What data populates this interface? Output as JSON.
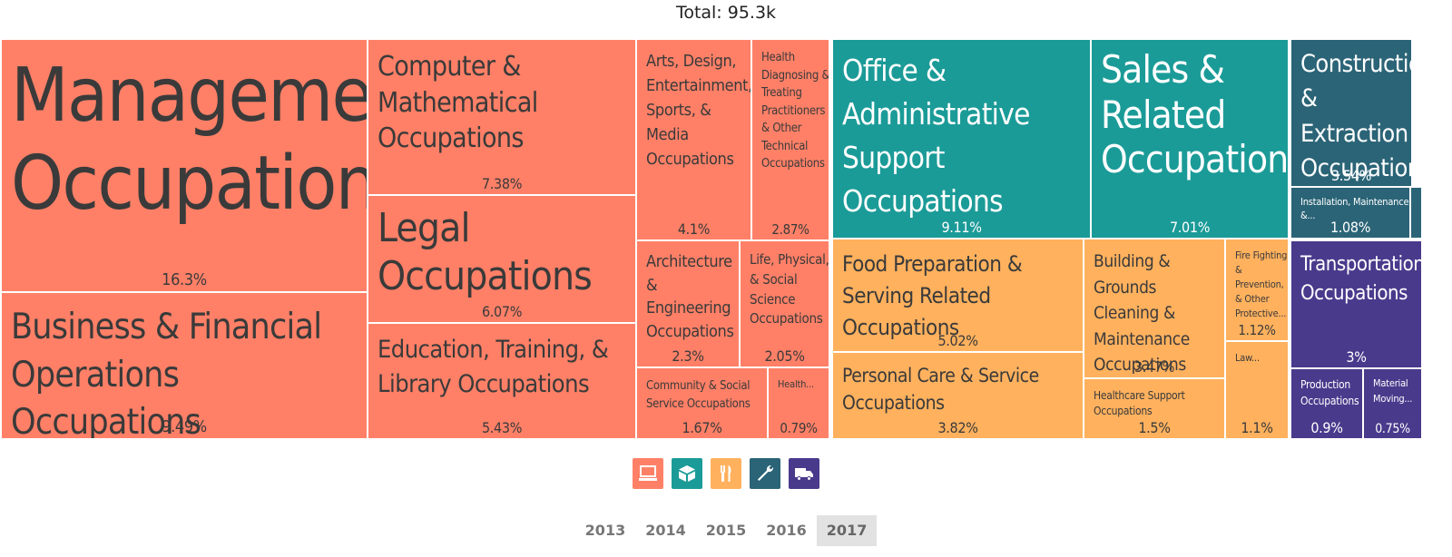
{
  "total_label": "Total: 95.3k",
  "colors": {
    "coral": "#ff8067",
    "teal": "#1b9b98",
    "orange": "#ffb15e",
    "slate": "#2b6477",
    "purple": "#4a3a8c",
    "year_active_bg": "#e2e2e2"
  },
  "legend": [
    {
      "icon": "computer-icon",
      "color": "#ff8067"
    },
    {
      "icon": "box-icon",
      "color": "#1b9b98"
    },
    {
      "icon": "fork-knife-icon",
      "color": "#ffb15e"
    },
    {
      "icon": "wrench-icon",
      "color": "#2b6477"
    },
    {
      "icon": "truck-icon",
      "color": "#4a3a8c"
    }
  ],
  "years": [
    "2013",
    "2014",
    "2015",
    "2016",
    "2017"
  ],
  "selected_year": "2017",
  "chart_data": {
    "type": "treemap",
    "title": "Total: 95.3k",
    "groups": [
      {
        "color": "#ff8067",
        "items": [
          {
            "label": "Management Occupations",
            "value": "16.3%"
          },
          {
            "label": "Business & Financial Operations Occupations",
            "value": "9.49%"
          },
          {
            "label": "Computer & Mathematical Occupations",
            "value": "7.38%"
          },
          {
            "label": "Legal Occupations",
            "value": "6.07%"
          },
          {
            "label": "Education, Training, & Library Occupations",
            "value": "5.43%"
          },
          {
            "label": "Arts, Design, Entertainment, Sports, & Media Occupations",
            "value": "4.1%"
          },
          {
            "label": "Health Diagnosing & Treating Practitioners & Other Technical Occupations",
            "value": "2.87%"
          },
          {
            "label": "Architecture & Engineering Occupations",
            "value": "2.3%"
          },
          {
            "label": "Life, Physical, & Social Science Occupations",
            "value": "2.05%"
          },
          {
            "label": "Community & Social Service Occupations",
            "value": "1.67%"
          },
          {
            "label": "Health...",
            "value": "0.79%"
          }
        ]
      },
      {
        "color": "#1b9b98",
        "items": [
          {
            "label": "Office & Administrative Support Occupations",
            "value": "9.11%"
          },
          {
            "label": "Sales & Related Occupations",
            "value": "7.01%"
          }
        ]
      },
      {
        "color": "#ffb15e",
        "items": [
          {
            "label": "Food Preparation & Serving Related Occupations",
            "value": "5.02%"
          },
          {
            "label": "Personal Care & Service Occupations",
            "value": "3.82%"
          },
          {
            "label": "Building & Grounds Cleaning & Maintenance Occupations",
            "value": "3.47%"
          },
          {
            "label": "Healthcare Support Occupations",
            "value": "1.5%"
          },
          {
            "label": "Fire Fighting & Prevention, & Other Protective...",
            "value": "1.12%"
          },
          {
            "label": "Law...",
            "value": "1.1%"
          }
        ]
      },
      {
        "color": "#2b6477",
        "items": [
          {
            "label": "Construction & Extraction Occupations",
            "value": "3.54%"
          },
          {
            "label": "Installation, Maintenance, &...",
            "value": "1.08%"
          }
        ]
      },
      {
        "color": "#4a3a8c",
        "items": [
          {
            "label": "Transportation Occupations",
            "value": "3%"
          },
          {
            "label": "Production Occupations",
            "value": "0.9%"
          },
          {
            "label": "Material Moving...",
            "value": "0.75%"
          }
        ]
      }
    ]
  }
}
